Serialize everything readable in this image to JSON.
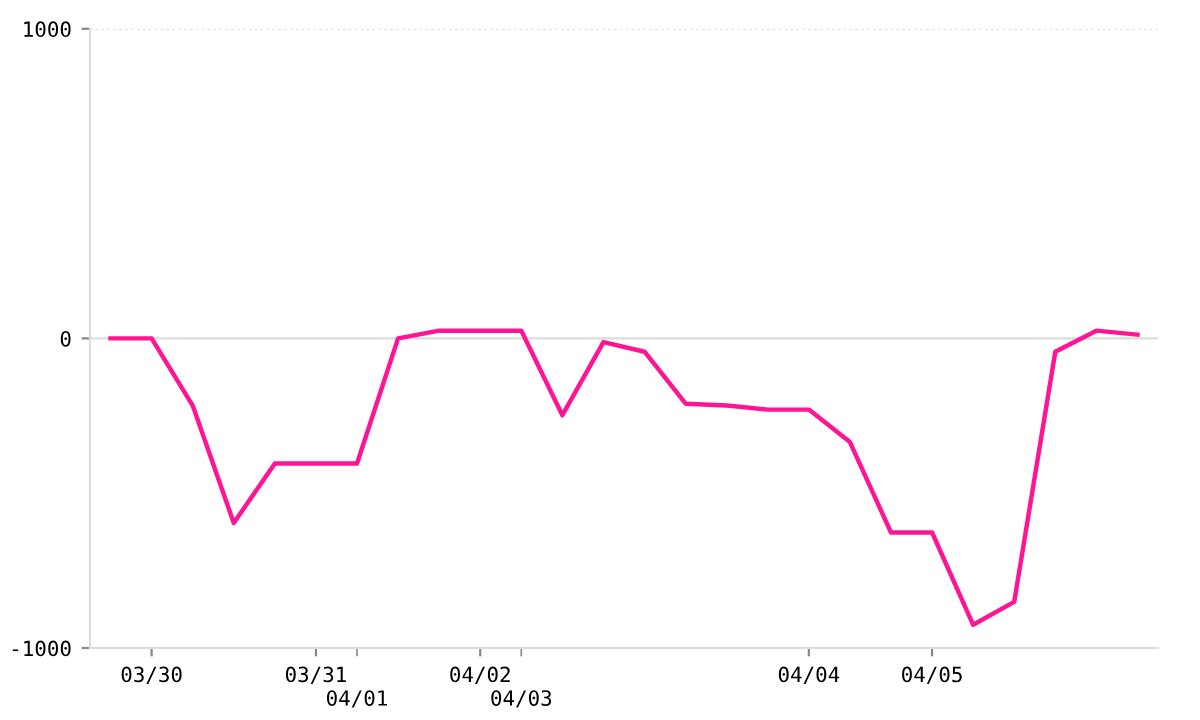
{
  "chart_data": {
    "type": "line",
    "categories": [
      null,
      "03/30",
      null,
      null,
      null,
      "03/31",
      "04/01",
      null,
      null,
      "04/02",
      "04/03",
      null,
      null,
      null,
      null,
      null,
      null,
      "04/04",
      null,
      null,
      "04/05",
      null,
      null,
      null,
      null,
      null
    ],
    "series": [
      {
        "color": "#ff1493",
        "values": [
          0,
          0,
          -217,
          -596,
          -404,
          -404,
          -404,
          0,
          25,
          25,
          25,
          -248,
          -12,
          -43,
          -211,
          -217,
          -230,
          -230,
          -335,
          -627,
          -627,
          -925,
          -851,
          -43,
          25,
          12
        ]
      }
    ],
    "ylim": [
      -1000,
      1000
    ],
    "yticks": [
      -1000,
      0,
      1000
    ],
    "grid": "y",
    "marker": "none",
    "line_style": "solid"
  }
}
